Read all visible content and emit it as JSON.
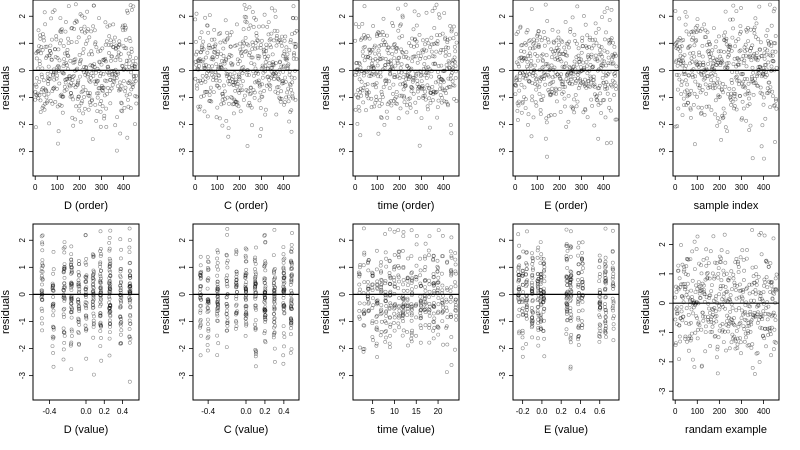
{
  "figure": {
    "rows": 2,
    "cols": 5
  },
  "chart_data": [
    {
      "type": "scatter",
      "xlabel": "D (order)",
      "ylabel": "residuals",
      "xlim": [
        -10,
        470
      ],
      "ylim": [
        -3.9,
        2.6
      ],
      "xticks": [
        0,
        100,
        200,
        300,
        400
      ],
      "xticklabels": [
        "0",
        "100",
        "200",
        "300",
        "400"
      ],
      "yticks": [
        -3,
        -2,
        -1,
        0,
        1,
        2
      ],
      "yticklabels": [
        "-3",
        "-2",
        "-1",
        "0",
        "1",
        "2"
      ],
      "hline": 0,
      "x_distribution": "index",
      "n_points": 460,
      "seed": 11
    },
    {
      "type": "scatter",
      "xlabel": "C (order)",
      "ylabel": "residuals",
      "xlim": [
        -10,
        470
      ],
      "ylim": [
        -3.9,
        2.6
      ],
      "xticks": [
        0,
        100,
        200,
        300,
        400
      ],
      "xticklabels": [
        "0",
        "100",
        "200",
        "300",
        "400"
      ],
      "yticks": [
        -3,
        -2,
        -1,
        0,
        1,
        2
      ],
      "yticklabels": [
        "-3",
        "-2",
        "-1",
        "0",
        "1",
        "2"
      ],
      "hline": 0,
      "x_distribution": "index",
      "n_points": 460,
      "seed": 23
    },
    {
      "type": "scatter",
      "xlabel": "time (order)",
      "ylabel": "residuals",
      "xlim": [
        -10,
        470
      ],
      "ylim": [
        -3.9,
        2.6
      ],
      "xticks": [
        0,
        100,
        200,
        300,
        400
      ],
      "xticklabels": [
        "0",
        "100",
        "200",
        "300",
        "400"
      ],
      "yticks": [
        -3,
        -2,
        -1,
        0,
        1,
        2
      ],
      "yticklabels": [
        "-3",
        "-2",
        "-1",
        "0",
        "1",
        "2"
      ],
      "hline": 0,
      "x_distribution": "index",
      "n_points": 460,
      "seed": 37
    },
    {
      "type": "scatter",
      "xlabel": "E (order)",
      "ylabel": "residuals",
      "xlim": [
        -10,
        470
      ],
      "ylim": [
        -3.9,
        2.6
      ],
      "xticks": [
        0,
        100,
        200,
        300,
        400
      ],
      "xticklabels": [
        "0",
        "100",
        "200",
        "300",
        "400"
      ],
      "yticks": [
        -3,
        -2,
        -1,
        0,
        1,
        2
      ],
      "yticklabels": [
        "-3",
        "-2",
        "-1",
        "0",
        "1",
        "2"
      ],
      "hline": 0,
      "x_distribution": "index",
      "n_points": 460,
      "seed": 41
    },
    {
      "type": "scatter",
      "xlabel": "sample index",
      "ylabel": "residuals",
      "xlim": [
        -10,
        470
      ],
      "ylim": [
        -3.9,
        2.6
      ],
      "xticks": [
        0,
        100,
        200,
        300,
        400
      ],
      "xticklabels": [
        "0",
        "100",
        "200",
        "300",
        "400"
      ],
      "yticks": [
        -3,
        -2,
        -1,
        0,
        1,
        2
      ],
      "yticklabels": [
        "-3",
        "-2",
        "-1",
        "0",
        "1",
        "2"
      ],
      "hline": 0,
      "x_distribution": "index",
      "n_points": 460,
      "seed": 53
    },
    {
      "type": "scatter",
      "xlabel": "D (value)",
      "ylabel": "residuals",
      "xlim": [
        -0.58,
        0.58
      ],
      "ylim": [
        -3.9,
        2.6
      ],
      "xticks": [
        -0.4,
        0.0,
        0.2,
        0.4
      ],
      "xticklabels": [
        "-0.4",
        "0.0",
        "0.2",
        "0.4"
      ],
      "yticks": [
        -3,
        -2,
        -1,
        0,
        1,
        2
      ],
      "yticklabels": [
        "-3",
        "-2",
        "-1",
        "0",
        "1",
        "2"
      ],
      "hline": 0,
      "x_distribution": "clusters",
      "x_clusters": [
        -0.48,
        -0.36,
        -0.24,
        -0.16,
        -0.08,
        0.0,
        0.08,
        0.16,
        0.26,
        0.38,
        0.48
      ],
      "n_points": 460,
      "seed": 61
    },
    {
      "type": "scatter",
      "xlabel": "C (value)",
      "ylabel": "residuals",
      "xlim": [
        -0.56,
        0.56
      ],
      "ylim": [
        -3.9,
        2.6
      ],
      "xticks": [
        -0.4,
        0.0,
        0.2,
        0.4
      ],
      "xticklabels": [
        "-0.4",
        "0.0",
        "0.2",
        "0.4"
      ],
      "yticks": [
        -3,
        -2,
        -1,
        0,
        1,
        2
      ],
      "yticklabels": [
        "-3",
        "-2",
        "-1",
        "0",
        "1",
        "2"
      ],
      "hline": 0,
      "x_distribution": "clusters",
      "x_clusters": [
        -0.48,
        -0.4,
        -0.3,
        -0.2,
        -0.1,
        0.0,
        0.1,
        0.2,
        0.3,
        0.4,
        0.48
      ],
      "n_points": 460,
      "seed": 67
    },
    {
      "type": "scatter",
      "xlabel": "time (value)",
      "ylabel": "residuals",
      "xlim": [
        0.5,
        24.8
      ],
      "ylim": [
        -3.9,
        2.6
      ],
      "xticks": [
        5,
        10,
        15,
        20
      ],
      "xticklabels": [
        "5",
        "10",
        "15",
        "20"
      ],
      "yticks": [
        -3,
        -2,
        -1,
        0,
        1,
        2
      ],
      "yticklabels": [
        "-3",
        "-2",
        "-1",
        "0",
        "1",
        "2"
      ],
      "hline": 0,
      "x_distribution": "clusters",
      "x_clusters": [
        2,
        3,
        4,
        5,
        6,
        7,
        8,
        9,
        10,
        11,
        12,
        13,
        14,
        15,
        16,
        17,
        18,
        19,
        20,
        21,
        22,
        23,
        24
      ],
      "n_points": 460,
      "seed": 71
    },
    {
      "type": "scatter",
      "xlabel": "E (value)",
      "ylabel": "residuals",
      "xlim": [
        -0.3,
        0.8
      ],
      "ylim": [
        -3.9,
        2.6
      ],
      "xticks": [
        -0.2,
        0.0,
        0.2,
        0.4,
        0.6
      ],
      "xticklabels": [
        "-0.2",
        "0.0",
        "0.2",
        "0.4",
        "0.6"
      ],
      "yticks": [
        -3,
        -2,
        -1,
        0,
        1,
        2
      ],
      "yticklabels": [
        "-3",
        "-2",
        "-1",
        "0",
        "1",
        "2"
      ],
      "hline": 0,
      "x_distribution": "clusters",
      "x_clusters": [
        -0.24,
        -0.2,
        -0.16,
        -0.1,
        -0.04,
        -0.01,
        0.02,
        0.26,
        0.3,
        0.38,
        0.42,
        0.6,
        0.66,
        0.74
      ],
      "n_points": 460,
      "seed": 79
    },
    {
      "type": "scatter",
      "xlabel": "randam example",
      "ylabel": "residuals",
      "xlim": [
        -10,
        470
      ],
      "ylim": [
        -3.3,
        2.7
      ],
      "xticks": [
        0,
        100,
        200,
        300,
        400
      ],
      "xticklabels": [
        "0",
        "100",
        "200",
        "300",
        "400"
      ],
      "yticks": [
        -3,
        -2,
        -1,
        0,
        1,
        2
      ],
      "yticklabels": [
        "-3",
        "-2",
        "-1",
        "0",
        "1",
        "2"
      ],
      "hline": 0,
      "x_distribution": "index",
      "n_points": 460,
      "seed": 97
    }
  ]
}
